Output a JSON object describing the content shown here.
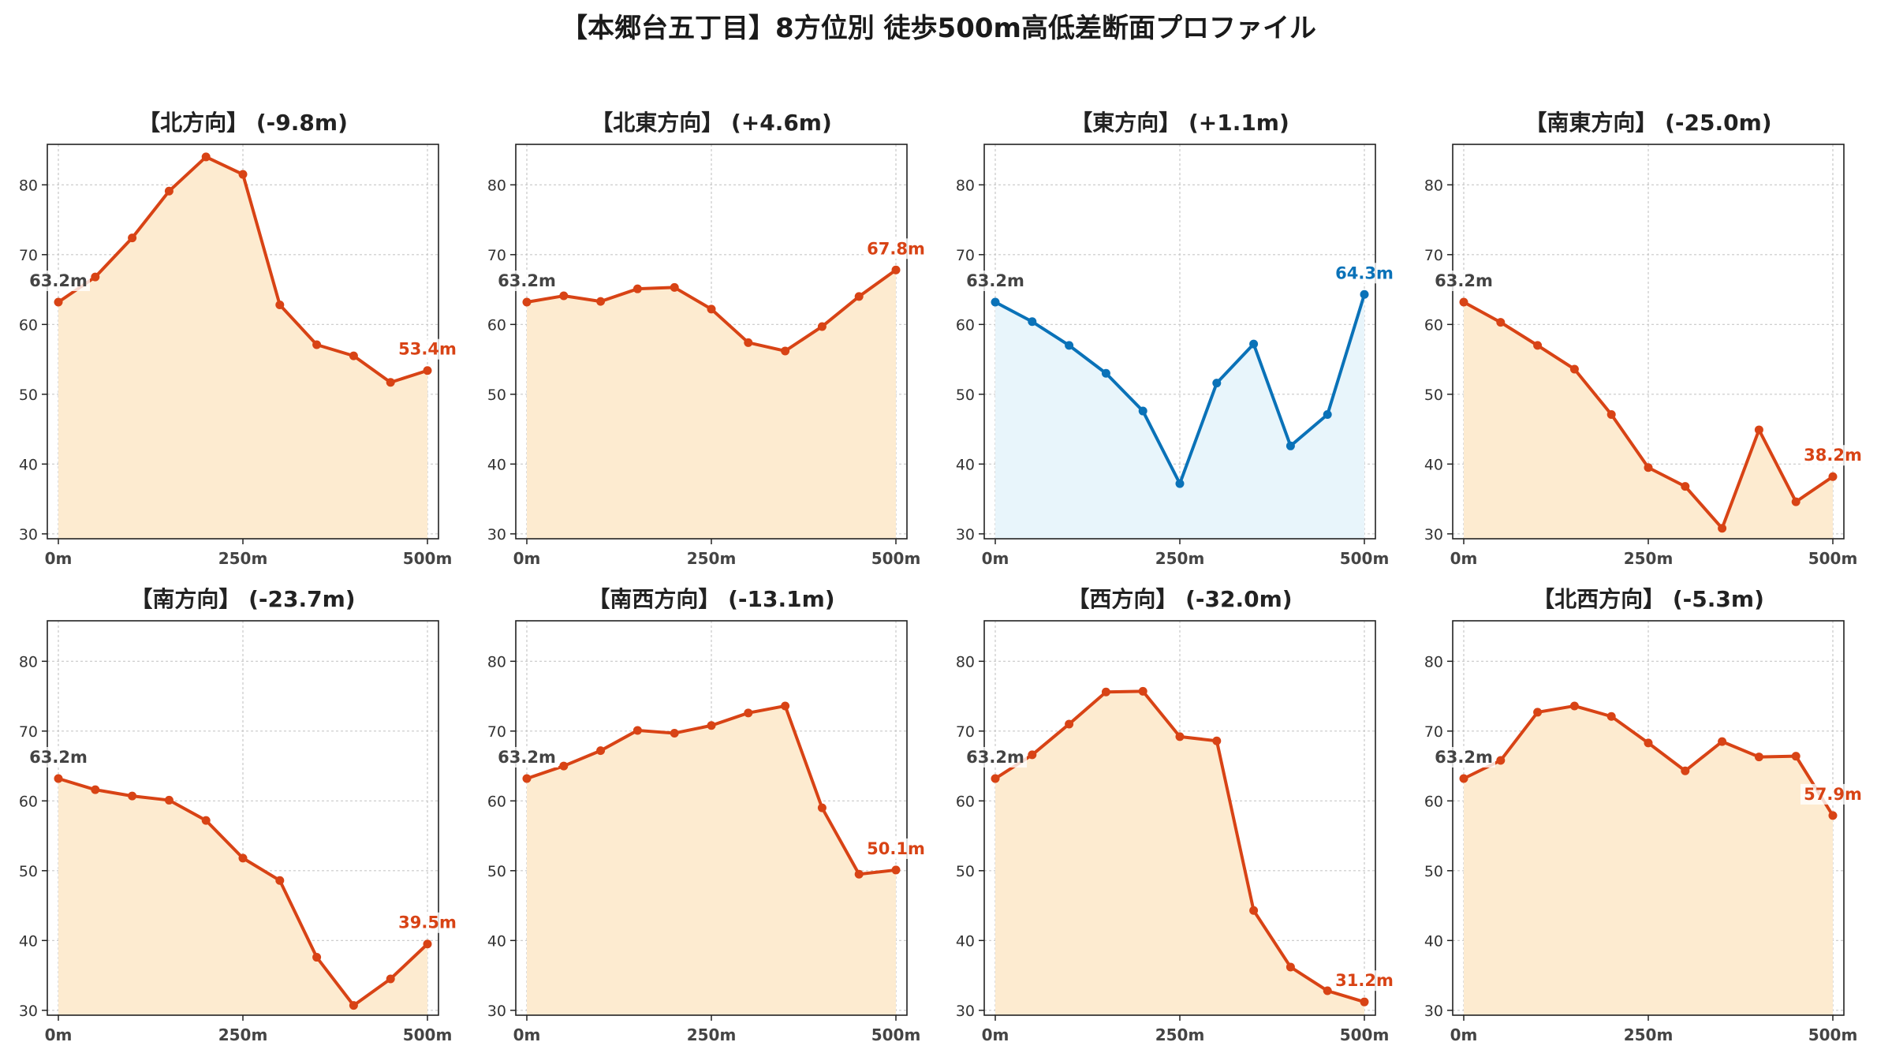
{
  "figure": {
    "title": "【本郷台五丁目】8方位別 徒歩500m高低差断面プロファイル"
  },
  "chart_data": [
    {
      "type": "line",
      "title": "【北方向】 (-9.8m)",
      "x": [
        0,
        50,
        100,
        150,
        200,
        250,
        300,
        350,
        400,
        450,
        500
      ],
      "values": [
        63.2,
        66.8,
        72.4,
        79.1,
        84.0,
        81.5,
        62.8,
        57.1,
        55.5,
        51.7,
        53.4
      ],
      "start_label": "63.2m",
      "end_label": "53.4m",
      "color": "#d84315",
      "fill": "#fdebd0",
      "xticks": [
        "0m",
        "250m",
        "500m"
      ],
      "yticks": [
        30,
        40,
        50,
        60,
        70,
        80
      ],
      "xlim": [
        0,
        500
      ],
      "ylim": [
        29.3,
        85.8
      ],
      "grid": true
    },
    {
      "type": "line",
      "title": "【北東方向】 (+4.6m)",
      "x": [
        0,
        50,
        100,
        150,
        200,
        250,
        300,
        350,
        400,
        450,
        500
      ],
      "values": [
        63.2,
        64.1,
        63.3,
        65.1,
        65.3,
        62.2,
        57.4,
        56.2,
        59.7,
        64.0,
        67.8
      ],
      "start_label": "63.2m",
      "end_label": "67.8m",
      "color": "#d84315",
      "fill": "#fdebd0",
      "xticks": [
        "0m",
        "250m",
        "500m"
      ],
      "yticks": [
        30,
        40,
        50,
        60,
        70,
        80
      ],
      "xlim": [
        0,
        500
      ],
      "ylim": [
        29.3,
        85.8
      ],
      "grid": true
    },
    {
      "type": "line",
      "title": "【東方向】 (+1.1m)",
      "x": [
        0,
        50,
        100,
        150,
        200,
        250,
        300,
        350,
        400,
        450,
        500
      ],
      "values": [
        63.2,
        60.4,
        57.0,
        53.0,
        47.6,
        37.2,
        51.6,
        57.2,
        42.6,
        47.1,
        64.3
      ],
      "start_label": "63.2m",
      "end_label": "64.3m",
      "color": "#0a72b8",
      "fill": "#e8f5fb",
      "xticks": [
        "0m",
        "250m",
        "500m"
      ],
      "yticks": [
        30,
        40,
        50,
        60,
        70,
        80
      ],
      "xlim": [
        0,
        500
      ],
      "ylim": [
        29.3,
        85.8
      ],
      "grid": true
    },
    {
      "type": "line",
      "title": "【南東方向】 (-25.0m)",
      "x": [
        0,
        50,
        100,
        150,
        200,
        250,
        300,
        350,
        400,
        450,
        500
      ],
      "values": [
        63.2,
        60.3,
        57.0,
        53.6,
        47.1,
        39.5,
        36.8,
        30.8,
        44.9,
        34.6,
        38.2
      ],
      "start_label": "63.2m",
      "end_label": "38.2m",
      "color": "#d84315",
      "fill": "#fdebd0",
      "xticks": [
        "0m",
        "250m",
        "500m"
      ],
      "yticks": [
        30,
        40,
        50,
        60,
        70,
        80
      ],
      "xlim": [
        0,
        500
      ],
      "ylim": [
        29.3,
        85.8
      ],
      "grid": true
    },
    {
      "type": "line",
      "title": "【南方向】 (-23.7m)",
      "x": [
        0,
        50,
        100,
        150,
        200,
        250,
        300,
        350,
        400,
        450,
        500
      ],
      "values": [
        63.2,
        61.6,
        60.7,
        60.1,
        57.2,
        51.8,
        48.6,
        37.6,
        30.7,
        34.5,
        39.5
      ],
      "start_label": "63.2m",
      "end_label": "39.5m",
      "color": "#d84315",
      "fill": "#fdebd0",
      "xticks": [
        "0m",
        "250m",
        "500m"
      ],
      "yticks": [
        30,
        40,
        50,
        60,
        70,
        80
      ],
      "xlim": [
        0,
        500
      ],
      "ylim": [
        29.3,
        85.8
      ],
      "grid": true
    },
    {
      "type": "line",
      "title": "【南西方向】 (-13.1m)",
      "x": [
        0,
        50,
        100,
        150,
        200,
        250,
        300,
        350,
        400,
        450,
        500
      ],
      "values": [
        63.2,
        65.0,
        67.2,
        70.1,
        69.7,
        70.8,
        72.6,
        73.6,
        59.0,
        49.5,
        50.1
      ],
      "start_label": "63.2m",
      "end_label": "50.1m",
      "color": "#d84315",
      "fill": "#fdebd0",
      "xticks": [
        "0m",
        "250m",
        "500m"
      ],
      "yticks": [
        30,
        40,
        50,
        60,
        70,
        80
      ],
      "xlim": [
        0,
        500
      ],
      "ylim": [
        29.3,
        85.8
      ],
      "grid": true
    },
    {
      "type": "line",
      "title": "【西方向】 (-32.0m)",
      "x": [
        0,
        50,
        100,
        150,
        200,
        250,
        300,
        350,
        400,
        450,
        500
      ],
      "values": [
        63.2,
        66.6,
        71.0,
        75.6,
        75.7,
        69.2,
        68.6,
        44.3,
        36.2,
        32.8,
        31.2
      ],
      "start_label": "63.2m",
      "end_label": "31.2m",
      "color": "#d84315",
      "fill": "#fdebd0",
      "xticks": [
        "0m",
        "250m",
        "500m"
      ],
      "yticks": [
        30,
        40,
        50,
        60,
        70,
        80
      ],
      "xlim": [
        0,
        500
      ],
      "ylim": [
        29.3,
        85.8
      ],
      "grid": true
    },
    {
      "type": "line",
      "title": "【北西方向】 (-5.3m)",
      "x": [
        0,
        50,
        100,
        150,
        200,
        250,
        300,
        350,
        400,
        450,
        500
      ],
      "values": [
        63.2,
        65.8,
        72.7,
        73.6,
        72.1,
        68.3,
        64.3,
        68.5,
        66.3,
        66.4,
        57.9
      ],
      "start_label": "63.2m",
      "end_label": "57.9m",
      "color": "#d84315",
      "fill": "#fdebd0",
      "xticks": [
        "0m",
        "250m",
        "500m"
      ],
      "yticks": [
        30,
        40,
        50,
        60,
        70,
        80
      ],
      "xlim": [
        0,
        500
      ],
      "ylim": [
        29.3,
        85.8
      ],
      "grid": true
    }
  ]
}
